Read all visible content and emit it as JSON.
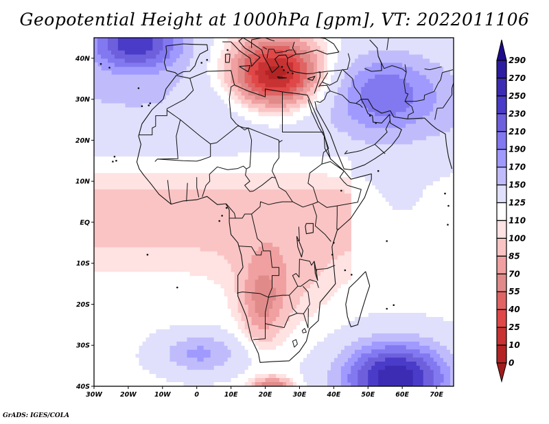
{
  "title": "Geopotential Height at 1000hPa [gpm], VT: 2022011106",
  "credit": "GrADS: IGES/COLA",
  "map": {
    "variable": "Geopotential Height",
    "level": "1000hPa",
    "units": "gpm",
    "valid_time": "2022011106",
    "lon_range": [
      -30,
      75
    ],
    "lat_range": [
      -40,
      45
    ],
    "x_ticks": [
      {
        "lon": -30,
        "label": "30W"
      },
      {
        "lon": -20,
        "label": "20W"
      },
      {
        "lon": -10,
        "label": "10W"
      },
      {
        "lon": 0,
        "label": "0"
      },
      {
        "lon": 10,
        "label": "10E"
      },
      {
        "lon": 20,
        "label": "20E"
      },
      {
        "lon": 30,
        "label": "30E"
      },
      {
        "lon": 40,
        "label": "40E"
      },
      {
        "lon": 50,
        "label": "50E"
      },
      {
        "lon": 60,
        "label": "60E"
      },
      {
        "lon": 70,
        "label": "70E"
      }
    ],
    "y_ticks": [
      {
        "lat": 40,
        "label": "40N"
      },
      {
        "lat": 30,
        "label": "30N"
      },
      {
        "lat": 20,
        "label": "20N"
      },
      {
        "lat": 10,
        "label": "10N"
      },
      {
        "lat": 0,
        "label": "EQ"
      },
      {
        "lat": -10,
        "label": "10S"
      },
      {
        "lat": -20,
        "label": "20S"
      },
      {
        "lat": -30,
        "label": "30S"
      },
      {
        "lat": -40,
        "label": "40S"
      }
    ],
    "features": [
      {
        "name": "mediterranean-low",
        "lon": 23,
        "lat": 36,
        "value": 5,
        "spread": [
          14,
          9
        ]
      },
      {
        "name": "south-indian-ocean-high",
        "lon": 58,
        "lat": -38,
        "value": 265,
        "spread": [
          16,
          9
        ]
      },
      {
        "name": "north-atlantic-high",
        "lon": -18,
        "lat": 44,
        "value": 245,
        "spread": [
          14,
          7
        ]
      },
      {
        "name": "iran-high",
        "lon": 55,
        "lat": 32,
        "value": 205,
        "spread": [
          15,
          10
        ]
      },
      {
        "name": "south-atlantic-high",
        "lon": 1,
        "lat": -32,
        "value": 175,
        "spread": [
          12,
          5
        ]
      },
      {
        "name": "southern-africa-trough",
        "lon": 19,
        "lat": -20,
        "value": 62,
        "spread": [
          6,
          10
        ]
      },
      {
        "name": "cape-low",
        "lon": 22,
        "lat": -41,
        "value": 40,
        "spread": [
          6,
          3
        ]
      }
    ]
  },
  "colorbar": {
    "levels": [
      0,
      10,
      25,
      40,
      55,
      70,
      85,
      100,
      110,
      125,
      150,
      170,
      190,
      210,
      230,
      250,
      270,
      290
    ],
    "colors": [
      "#a01c1c",
      "#b42424",
      "#c83232",
      "#e04848",
      "#e06464",
      "#e08a8a",
      "#f0a0a0",
      "#fac4c4",
      "#ffe2e2",
      "#ffffff",
      "#e0e0fc",
      "#c0bcfc",
      "#a09aff",
      "#8278f0",
      "#6e60dc",
      "#4a3cc8",
      "#3c2cb4",
      "#2c1ca0",
      "#1e0a8c"
    ]
  }
}
